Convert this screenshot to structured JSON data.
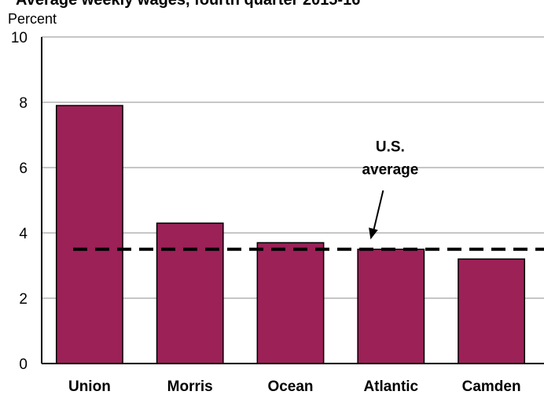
{
  "chart_data": {
    "type": "bar",
    "title": "Average weekly wages, fourth quarter 2015-16",
    "ylabel": "Percent",
    "categories": [
      "Union",
      "Morris",
      "Ocean",
      "Atlantic",
      "Camden"
    ],
    "values": [
      7.9,
      4.3,
      3.7,
      3.5,
      3.2
    ],
    "ylim": [
      0,
      10
    ],
    "yticks": [
      "0",
      "2",
      "4",
      "6",
      "8",
      "10"
    ],
    "reference_line": {
      "value": 3.5,
      "label_line1": "U.S.",
      "label_line2": "average"
    },
    "grid": true,
    "colors": {
      "bar": "#9b2157",
      "grid": "#b4b4b4",
      "reference": "#000000"
    }
  }
}
